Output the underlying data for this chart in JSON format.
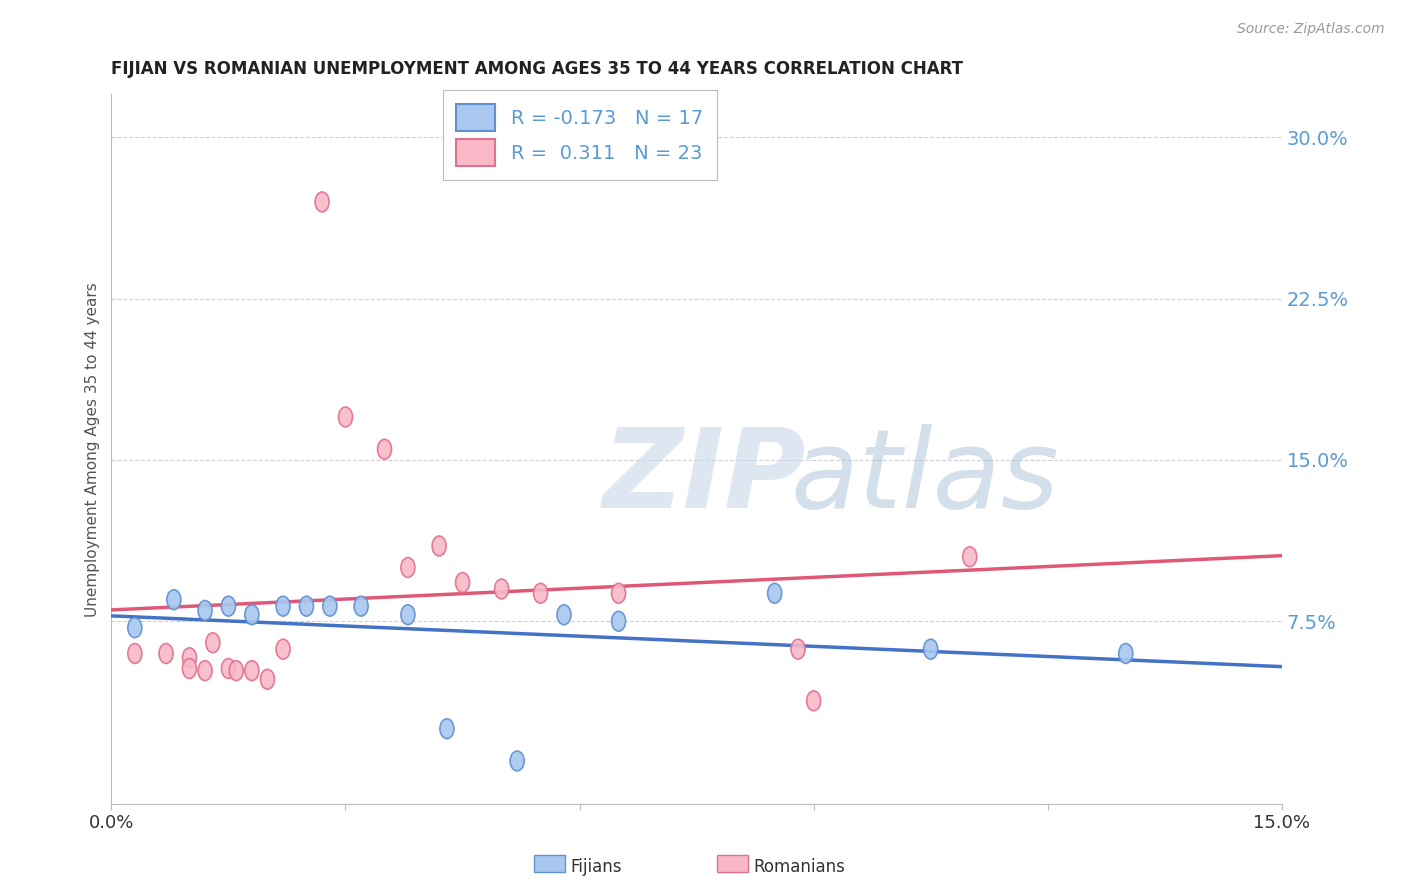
{
  "title": "FIJIAN VS ROMANIAN UNEMPLOYMENT AMONG AGES 35 TO 44 YEARS CORRELATION CHART",
  "source": "Source: ZipAtlas.com",
  "ylabel": "Unemployment Among Ages 35 to 44 years",
  "xlim": [
    0.0,
    0.15
  ],
  "ylim": [
    -0.01,
    0.32
  ],
  "yticks": [
    0.075,
    0.15,
    0.225,
    0.3
  ],
  "ytick_labels": [
    "7.5%",
    "15.0%",
    "22.5%",
    "30.0%"
  ],
  "fijian_color": "#A8C8F0",
  "romanian_color": "#F8B8C8",
  "fijian_edge_color": "#6090D0",
  "romanian_edge_color": "#E07090",
  "fijian_line_color": "#4472C4",
  "romanian_line_color": "#E05878",
  "fijian_R": -0.173,
  "fijian_N": 17,
  "romanian_R": 0.311,
  "romanian_N": 23,
  "fijian_x": [
    0.003,
    0.008,
    0.012,
    0.015,
    0.018,
    0.022,
    0.025,
    0.028,
    0.032,
    0.038,
    0.043,
    0.052,
    0.058,
    0.065,
    0.085,
    0.105,
    0.13
  ],
  "fijian_y": [
    0.072,
    0.085,
    0.08,
    0.082,
    0.078,
    0.082,
    0.082,
    0.082,
    0.082,
    0.078,
    0.025,
    0.01,
    0.078,
    0.075,
    0.088,
    0.062,
    0.06
  ],
  "romanian_x": [
    0.003,
    0.007,
    0.01,
    0.01,
    0.012,
    0.013,
    0.015,
    0.016,
    0.018,
    0.02,
    0.022,
    0.027,
    0.03,
    0.035,
    0.038,
    0.042,
    0.045,
    0.05,
    0.055,
    0.065,
    0.088,
    0.09,
    0.11
  ],
  "romanian_y": [
    0.06,
    0.06,
    0.058,
    0.053,
    0.052,
    0.065,
    0.053,
    0.052,
    0.052,
    0.048,
    0.062,
    0.27,
    0.17,
    0.155,
    0.1,
    0.11,
    0.093,
    0.09,
    0.088,
    0.088,
    0.062,
    0.038,
    0.105
  ],
  "background_color": "#FFFFFF",
  "grid_color": "#CCCCCC",
  "tick_color": "#5B9BD5",
  "legend_text_color": "#5B9BD5",
  "legend_label_color": "#333333"
}
